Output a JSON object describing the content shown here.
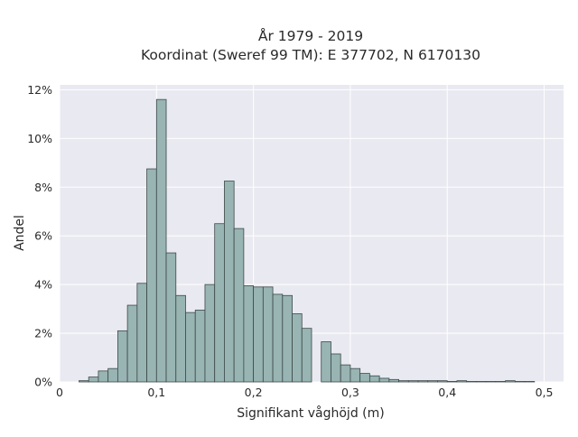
{
  "chart_data": {
    "type": "bar",
    "title_lines": [
      "År 1979 - 2019",
      "Koordinat (Sweref 99 TM): E 377702, N 6170130"
    ],
    "xlabel": "Signifikant våghöjd (m)",
    "ylabel": "Andel",
    "xlim": [
      0,
      0.52
    ],
    "ylim": [
      0,
      12.2
    ],
    "x_ticks": [
      0,
      0.1,
      0.2,
      0.3,
      0.4,
      0.5
    ],
    "x_tick_labels": [
      "0",
      "0,1",
      "0,2",
      "0,3",
      "0,4",
      "0,5"
    ],
    "y_ticks": [
      0,
      2,
      4,
      6,
      8,
      10,
      12
    ],
    "y_tick_labels": [
      "0%",
      "2%",
      "4%",
      "6%",
      "8%",
      "10%",
      "12%"
    ],
    "bin_width": 0.01,
    "bin_starts": [
      0.02,
      0.03,
      0.04,
      0.05,
      0.06,
      0.07,
      0.08,
      0.09,
      0.1,
      0.11,
      0.12,
      0.13,
      0.14,
      0.15,
      0.16,
      0.17,
      0.18,
      0.19,
      0.2,
      0.21,
      0.22,
      0.23,
      0.24,
      0.25,
      0.26,
      0.27,
      0.28,
      0.29,
      0.3,
      0.31,
      0.32,
      0.33,
      0.34,
      0.35,
      0.36,
      0.37,
      0.38,
      0.39,
      0.4,
      0.41,
      0.42,
      0.43,
      0.44,
      0.45,
      0.46,
      0.47,
      0.48
    ],
    "values": [
      0.05,
      0.2,
      0.45,
      0.55,
      2.1,
      3.15,
      4.05,
      8.75,
      11.6,
      5.3,
      3.55,
      2.85,
      2.95,
      4.0,
      6.5,
      8.25,
      6.3,
      3.95,
      3.9,
      3.9,
      3.6,
      3.55,
      2.8,
      2.2,
      0.0,
      1.65,
      1.15,
      0.7,
      0.55,
      0.35,
      0.25,
      0.15,
      0.1,
      0.05,
      0.05,
      0.05,
      0.05,
      0.05,
      0.02,
      0.05,
      0.02,
      0.02,
      0.02,
      0.02,
      0.05,
      0.02,
      0.02
    ],
    "grid": true,
    "colors": {
      "bar_fill": "#98b4b3",
      "bar_edge": "#3c4a49",
      "plot_background": "#e9e9f1",
      "grid": "#ffffff"
    }
  }
}
